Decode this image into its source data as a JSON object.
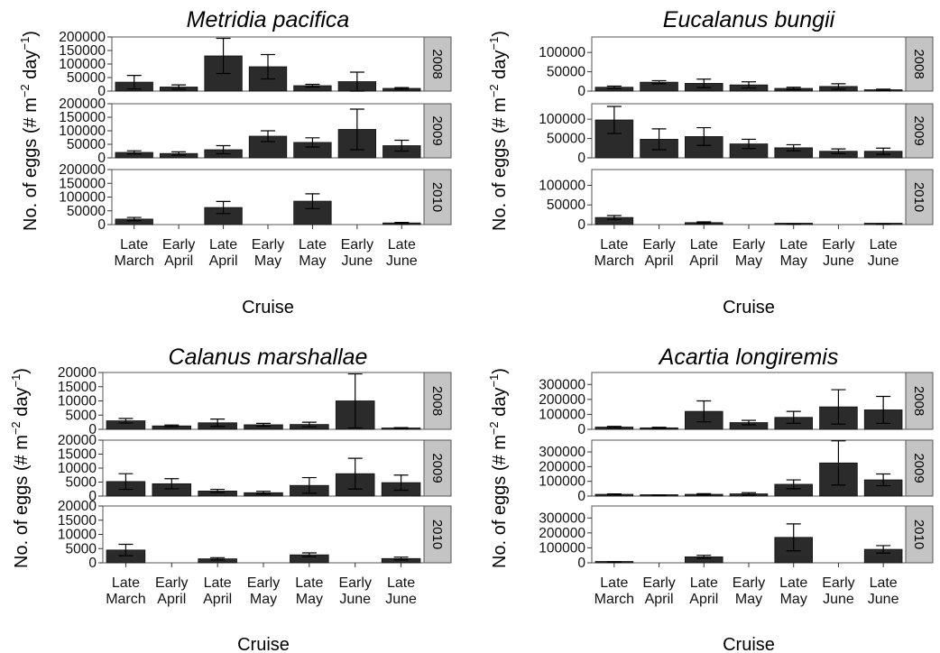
{
  "chart_data": [
    {
      "type": "bar",
      "title": "Metridia pacifica",
      "xlabel": "Cruise",
      "ylabel_parts": [
        "No. of eggs (# m",
        "−2",
        " day",
        "−1",
        ")"
      ],
      "categories": [
        [
          "Late",
          "March"
        ],
        [
          "Early",
          "April"
        ],
        [
          "Late",
          "April"
        ],
        [
          "Early",
          "May"
        ],
        [
          "Late",
          "May"
        ],
        [
          "Early",
          "June"
        ],
        [
          "Late",
          "June"
        ]
      ],
      "ylim": [
        0,
        200000
      ],
      "yticks": [
        "0",
        "50000",
        "100000",
        "150000",
        "200000"
      ],
      "ytick_values": [
        0,
        50000,
        100000,
        150000,
        200000
      ],
      "facets": [
        {
          "label": "2008",
          "values": [
            33000,
            15000,
            130000,
            90000,
            20000,
            35000,
            10000
          ],
          "errors": [
            25000,
            8000,
            65000,
            45000,
            5000,
            35000,
            3000
          ]
        },
        {
          "label": "2009",
          "values": [
            20000,
            16000,
            30000,
            80000,
            57000,
            105000,
            45000
          ],
          "errors": [
            6000,
            6000,
            15000,
            20000,
            17000,
            75000,
            20000
          ]
        },
        {
          "label": "2010",
          "values": [
            20000,
            null,
            62000,
            null,
            85000,
            null,
            6000
          ],
          "errors": [
            6000,
            null,
            22000,
            null,
            27000,
            null,
            2000
          ]
        }
      ]
    },
    {
      "type": "bar",
      "title": "Eucalanus bungii",
      "xlabel": "Cruise",
      "ylabel_parts": [
        "No. of eggs (# m",
        "−2",
        " day",
        "−1",
        ")"
      ],
      "categories": [
        [
          "Late",
          "March"
        ],
        [
          "Early",
          "April"
        ],
        [
          "Late",
          "April"
        ],
        [
          "Early",
          "May"
        ],
        [
          "Late",
          "May"
        ],
        [
          "Early",
          "June"
        ],
        [
          "Late",
          "June"
        ]
      ],
      "ylim": [
        0,
        140000
      ],
      "yticks": [
        "0",
        "50000",
        "100000"
      ],
      "ytick_values": [
        0,
        50000,
        100000
      ],
      "facets": [
        {
          "label": "2008",
          "values": [
            10000,
            23000,
            20000,
            16000,
            7000,
            12000,
            3000
          ],
          "errors": [
            3000,
            4000,
            11000,
            8000,
            3000,
            7000,
            2000
          ]
        },
        {
          "label": "2009",
          "values": [
            98000,
            48000,
            55000,
            36000,
            26000,
            17000,
            17000
          ],
          "errors": [
            35000,
            27000,
            23000,
            12000,
            8000,
            6000,
            8000
          ]
        },
        {
          "label": "2010",
          "values": [
            18000,
            null,
            5000,
            null,
            1000,
            null,
            1000
          ],
          "errors": [
            5000,
            null,
            2000,
            null,
            500,
            null,
            500
          ]
        }
      ]
    },
    {
      "type": "bar",
      "title": "Calanus marshallae",
      "xlabel": "Cruise",
      "ylabel_parts": [
        "No. of eggs (# m",
        "−2",
        " day",
        "−1",
        ")"
      ],
      "categories": [
        [
          "Late",
          "March"
        ],
        [
          "Early",
          "April"
        ],
        [
          "Late",
          "April"
        ],
        [
          "Early",
          "May"
        ],
        [
          "Late",
          "May"
        ],
        [
          "Early",
          "June"
        ],
        [
          "Late",
          "June"
        ]
      ],
      "ylim": [
        0,
        20000
      ],
      "yticks": [
        "0",
        "5000",
        "10000",
        "15000",
        "20000"
      ],
      "ytick_values": [
        0,
        5000,
        10000,
        15000,
        20000
      ],
      "facets": [
        {
          "label": "2008",
          "values": [
            3000,
            1200,
            2300,
            1600,
            1700,
            10000,
            400
          ],
          "errors": [
            800,
            300,
            1300,
            500,
            800,
            9500,
            200
          ]
        },
        {
          "label": "2009",
          "values": [
            5200,
            4400,
            1800,
            1200,
            3800,
            8000,
            4800
          ],
          "errors": [
            2800,
            1800,
            600,
            500,
            2800,
            5500,
            2700
          ]
        },
        {
          "label": "2010",
          "values": [
            4500,
            null,
            1400,
            null,
            2800,
            null,
            1500
          ],
          "errors": [
            2000,
            null,
            400,
            null,
            700,
            null,
            500
          ]
        }
      ]
    },
    {
      "type": "bar",
      "title": "Acartia longiremis",
      "xlabel": "Cruise",
      "ylabel_parts": [
        "No. of eggs (# m",
        "−2",
        " day",
        "−1",
        ")"
      ],
      "categories": [
        [
          "Late",
          "March"
        ],
        [
          "Early",
          "April"
        ],
        [
          "Late",
          "April"
        ],
        [
          "Early",
          "May"
        ],
        [
          "Late",
          "May"
        ],
        [
          "Early",
          "June"
        ],
        [
          "Late",
          "June"
        ]
      ],
      "ylim": [
        0,
        380000
      ],
      "yticks": [
        "0",
        "100000",
        "200000",
        "300000"
      ],
      "ytick_values": [
        0,
        100000,
        200000,
        300000
      ],
      "facets": [
        {
          "label": "2008",
          "values": [
            15000,
            10000,
            120000,
            45000,
            80000,
            150000,
            130000
          ],
          "errors": [
            5000,
            4000,
            70000,
            15000,
            40000,
            115000,
            90000
          ]
        },
        {
          "label": "2009",
          "values": [
            12000,
            5000,
            12000,
            15000,
            80000,
            225000,
            110000
          ],
          "errors": [
            3000,
            2000,
            4000,
            8000,
            30000,
            150000,
            40000
          ]
        },
        {
          "label": "2010",
          "values": [
            5000,
            null,
            40000,
            null,
            170000,
            null,
            90000
          ],
          "errors": [
            2000,
            null,
            10000,
            null,
            90000,
            null,
            25000
          ]
        }
      ]
    }
  ]
}
